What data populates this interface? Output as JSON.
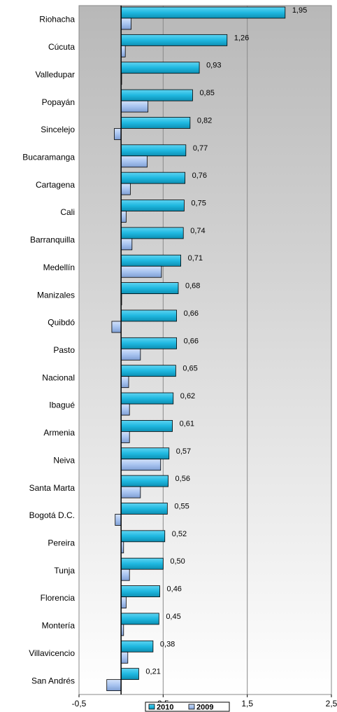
{
  "chart_data": {
    "type": "bar",
    "orientation": "horizontal",
    "categories": [
      "Riohacha",
      "Cúcuta",
      "Valledupar",
      "Popayán",
      "Sincelejo",
      "Bucaramanga",
      "Cartagena",
      "Cali",
      "Barranquilla",
      "Medellín",
      "Manizales",
      "Quibdó",
      "Pasto",
      "Nacional",
      "Ibagué",
      "Armenia",
      "Neiva",
      "Santa Marta",
      "Bogotá D.C.",
      "Pereira",
      "Tunja",
      "Florencia",
      "Montería",
      "Villavicencio",
      "San Andrés"
    ],
    "series": [
      {
        "name": "2010",
        "color": "#1fb8e0",
        "values": [
          1.95,
          1.26,
          0.93,
          0.85,
          0.82,
          0.77,
          0.76,
          0.75,
          0.74,
          0.71,
          0.68,
          0.66,
          0.66,
          0.65,
          0.62,
          0.61,
          0.57,
          0.56,
          0.55,
          0.52,
          0.5,
          0.46,
          0.45,
          0.38,
          0.21
        ],
        "labels": [
          "1,95",
          "1,26",
          "0,93",
          "0,85",
          "0,82",
          "0,77",
          "0,76",
          "0,75",
          "0,74",
          "0,71",
          "0,68",
          "0,66",
          "0,66",
          "0,65",
          "0,62",
          "0,61",
          "0,57",
          "0,56",
          "0,55",
          "0,52",
          "0,50",
          "0,46",
          "0,45",
          "0,38",
          "0,21"
        ]
      },
      {
        "name": "2009",
        "color": "#a8c4f0",
        "values": [
          0.12,
          0.05,
          0.0,
          0.32,
          -0.08,
          0.31,
          0.11,
          0.06,
          0.13,
          0.48,
          0.0,
          -0.11,
          0.23,
          0.09,
          0.1,
          0.1,
          0.47,
          0.23,
          -0.07,
          0.03,
          0.1,
          0.06,
          0.03,
          0.08,
          -0.17
        ]
      }
    ],
    "xlim": [
      -0.5,
      2.5
    ],
    "ticks": [
      -0.5,
      0.5,
      1.5,
      2.5
    ],
    "tick_labels": [
      "-0,5",
      "0,5",
      "1,5",
      "2,5"
    ],
    "gridlines": [
      0.5,
      1.5
    ],
    "legend": {
      "position": "bottom",
      "entries": [
        "2010",
        "2009"
      ]
    }
  }
}
